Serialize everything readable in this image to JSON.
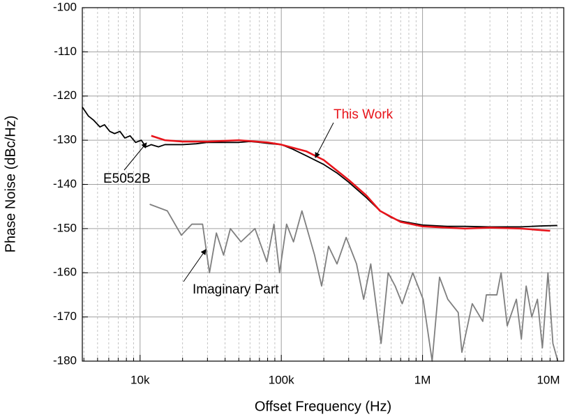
{
  "chart_data": {
    "type": "line",
    "xlabel": "Offset Frequency (Hz)",
    "ylabel": "Phase Noise (dBc/Hz)",
    "xscale": "log",
    "xlim": [
      3900,
      10000000
    ],
    "xticks": [
      {
        "value": 10000,
        "label": "10k"
      },
      {
        "value": 100000,
        "label": "100k"
      },
      {
        "value": 1000000,
        "label": "1M"
      },
      {
        "value": 10000000,
        "label": "10M"
      }
    ],
    "ylim": [
      -180,
      -100
    ],
    "yticks": [
      -100,
      -110,
      -120,
      -130,
      -140,
      -150,
      -160,
      -170,
      -180
    ],
    "grid": true,
    "series": [
      {
        "name": "E5052B",
        "color": "#000000",
        "x": [
          3900,
          4300,
          4700,
          5200,
          5600,
          6100,
          6600,
          7200,
          7800,
          8500,
          9300,
          10200,
          11000,
          12000,
          13500,
          15000,
          17000,
          20000,
          25000,
          30000,
          40000,
          50000,
          60000,
          70000,
          85000,
          100000,
          120000,
          150000,
          200000,
          250000,
          300000,
          400000,
          500000,
          600000,
          700000,
          850000,
          1000000,
          1500000,
          2000000,
          3000000,
          5000000,
          7000000,
          9000000
        ],
        "values": [
          -122.5,
          -124.5,
          -125.5,
          -127,
          -126.5,
          -128,
          -128.5,
          -128,
          -129.5,
          -129,
          -130.5,
          -130,
          -131.5,
          -131,
          -131.5,
          -131,
          -131,
          -131,
          -130.8,
          -130.5,
          -130.5,
          -130.5,
          -130.3,
          -130.5,
          -130.8,
          -131,
          -132,
          -133.5,
          -135.5,
          -137.5,
          -139.5,
          -143,
          -146,
          -147.5,
          -148.3,
          -148.8,
          -149.2,
          -149.5,
          -149.5,
          -149.6,
          -149.6,
          -149.4,
          -149.3
        ]
      },
      {
        "name": "This Work",
        "color": "#e8141b",
        "x": [
          12000,
          15000,
          20000,
          30000,
          50000,
          80000,
          100000,
          150000,
          200000,
          300000,
          400000,
          500000,
          700000,
          1000000,
          2000000,
          3000000,
          5000000,
          8000000
        ],
        "values": [
          -129,
          -130,
          -130.3,
          -130.3,
          -130,
          -130.5,
          -131,
          -132.5,
          -134.5,
          -139,
          -142.5,
          -146,
          -148.5,
          -149.5,
          -150,
          -149.8,
          -150,
          -150.5
        ]
      },
      {
        "name": "Imaginary Part",
        "color": "#7f7f7f",
        "x": [
          11700,
          15600,
          19600,
          23300,
          27700,
          31000,
          34700,
          39000,
          43600,
          51800,
          65100,
          79000,
          88700,
          97200,
          109000,
          122000,
          140000,
          172000,
          193000,
          216000,
          248000,
          288000,
          341000,
          383000,
          430000,
          509000,
          571000,
          640000,
          718000,
          853000,
          1010000,
          1170000,
          1320000,
          1510000,
          1790000,
          1900000,
          2250000,
          2670000,
          2830000,
          3360000,
          3600000,
          3980000,
          4620000,
          5010000,
          5420000,
          5940000,
          6510000,
          7060000,
          7730000,
          8380000,
          9080000
        ],
        "values": [
          -144.5,
          -146,
          -151.5,
          -149,
          -149,
          -160,
          -151,
          -156,
          -150,
          -153,
          -150,
          -157.5,
          -149,
          -160,
          -149,
          -153,
          -146,
          -156,
          -163,
          -154,
          -158,
          -152,
          -158,
          -166,
          -158,
          -176,
          -160,
          -163,
          -167,
          -160,
          -166,
          -180,
          -161,
          -166,
          -169,
          -178,
          -167,
          -171,
          -165,
          -165,
          -160,
          -172,
          -166,
          -175,
          -163,
          -170,
          -166,
          -177,
          -160,
          -176,
          -180
        ]
      }
    ]
  }
}
